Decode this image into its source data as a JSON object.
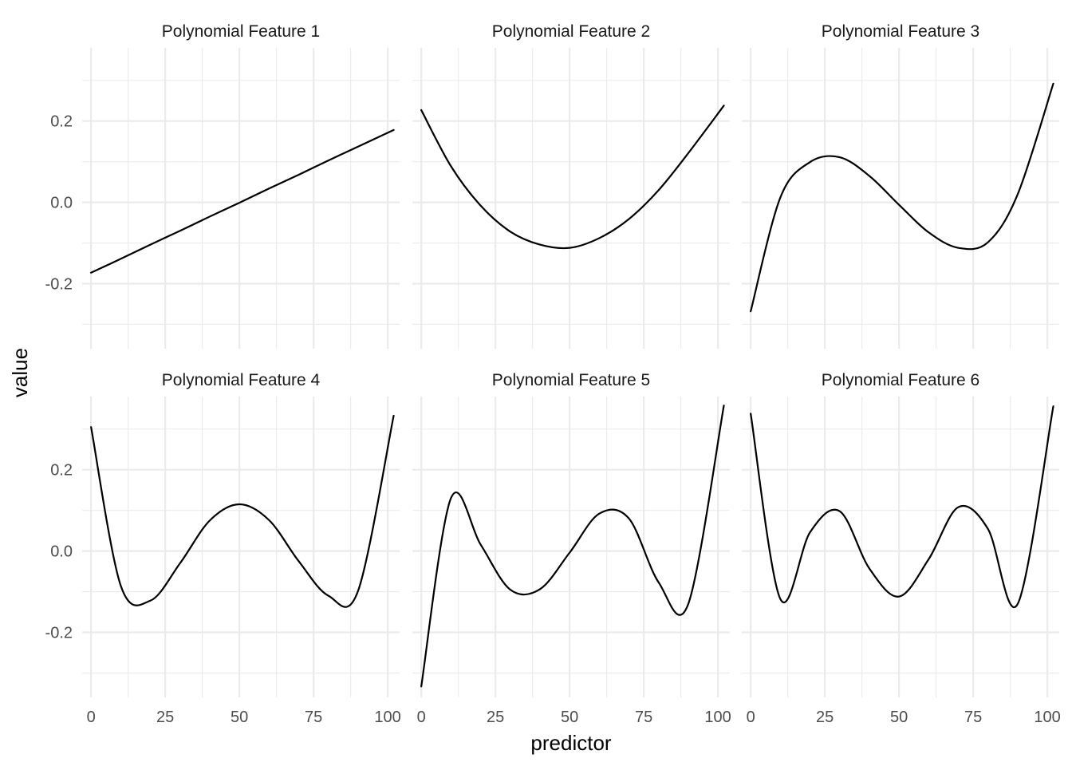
{
  "chart_data": {
    "type": "line",
    "xlabel": "predictor",
    "ylabel": "value",
    "xlim": [
      -3,
      104
    ],
    "ylim": [
      -0.36,
      0.38
    ],
    "x_ticks": [
      0,
      25,
      50,
      75,
      100
    ],
    "x_tick_labels": [
      "0",
      "25",
      "50",
      "75",
      "100"
    ],
    "y_ticks": [
      -0.2,
      0.0,
      0.2
    ],
    "y_tick_labels": [
      "-0.2",
      "0.0",
      "0.2"
    ],
    "grid": true,
    "legend": "none",
    "x": [
      0,
      10,
      20,
      30,
      40,
      50,
      60,
      70,
      80,
      90,
      102
    ],
    "panels": [
      {
        "title": "Polynomial Feature 1",
        "values": [
          -0.173,
          -0.139,
          -0.104,
          -0.07,
          -0.035,
          -0.001,
          0.034,
          0.068,
          0.103,
          0.137,
          0.178
        ]
      },
      {
        "title": "Polynomial Feature 2",
        "values": [
          0.227,
          0.089,
          -0.008,
          -0.072,
          -0.104,
          -0.112,
          -0.088,
          -0.041,
          0.03,
          0.121,
          0.238
        ]
      },
      {
        "title": "Polynomial Feature 3",
        "values": [
          -0.268,
          0.012,
          0.099,
          0.111,
          0.065,
          -0.006,
          -0.074,
          -0.112,
          -0.098,
          0.02,
          0.292
        ]
      },
      {
        "title": "Polynomial Feature 4",
        "values": [
          0.305,
          -0.085,
          -0.122,
          -0.03,
          0.075,
          0.115,
          0.076,
          -0.025,
          -0.11,
          -0.098,
          0.333
        ]
      },
      {
        "title": "Polynomial Feature 5",
        "values": [
          -0.333,
          0.13,
          0.016,
          -0.095,
          -0.094,
          -0.004,
          0.092,
          0.08,
          -0.077,
          -0.13,
          0.358
        ]
      },
      {
        "title": "Polynomial Feature 6",
        "values": [
          0.338,
          -0.118,
          0.046,
          0.098,
          -0.043,
          -0.112,
          -0.02,
          0.108,
          0.054,
          -0.13,
          0.356
        ]
      }
    ]
  }
}
